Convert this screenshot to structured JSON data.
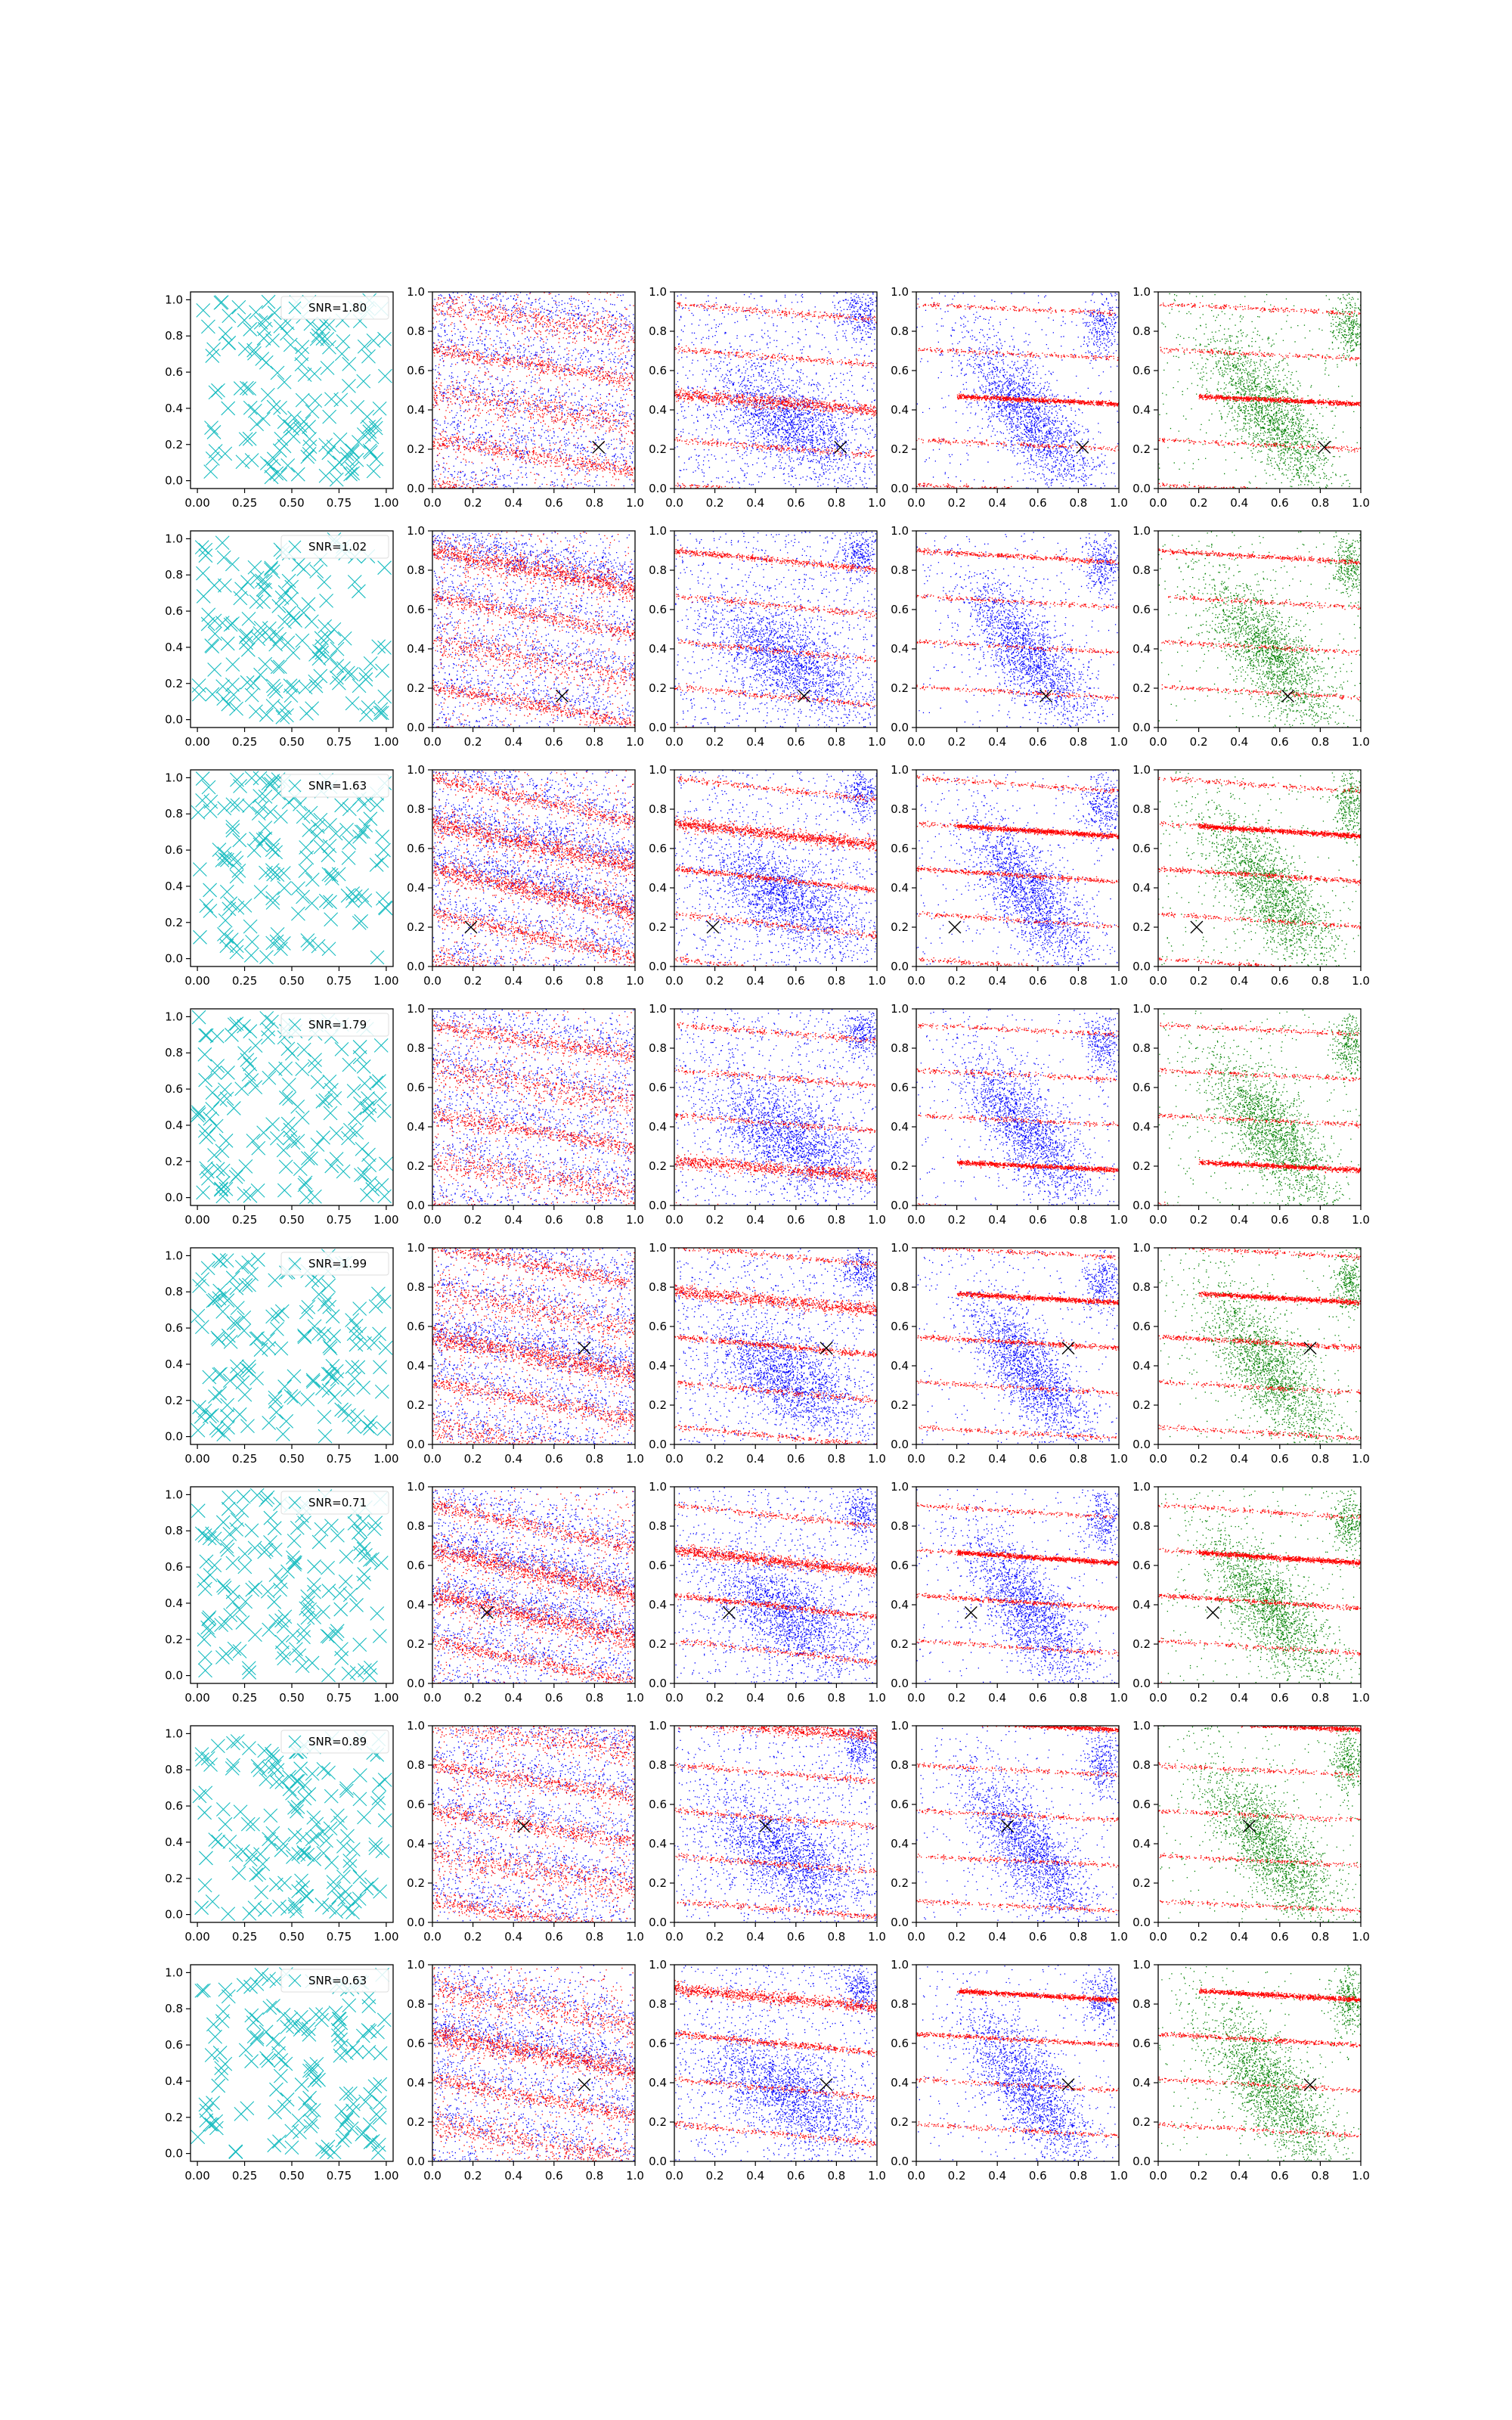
{
  "figure": {
    "rows": 8,
    "columns": 5,
    "colors": {
      "column1": "#17bcc0",
      "blue": "#0000ff",
      "red": "#ff0000",
      "green": "#008000",
      "marker": "#000000"
    }
  },
  "chart_data": [
    {
      "row": 1,
      "col": 1,
      "type": "scatter",
      "series": [
        {
          "marker": "x",
          "color": "#17bcc0"
        }
      ],
      "legend": "SNR=1.80",
      "legend_position": "top-right",
      "xlim": [
        0,
        1
      ],
      "ylim": [
        0,
        1
      ],
      "xticks": [
        "0.00",
        "0.25",
        "0.50",
        "0.75",
        "1.00"
      ],
      "yticks": [
        "0.0",
        "0.2",
        "0.4",
        "0.6",
        "0.8",
        "1.0"
      ]
    },
    {
      "row": 2,
      "col": 1,
      "type": "scatter",
      "series": [
        {
          "marker": "x",
          "color": "#17bcc0"
        }
      ],
      "legend": "SNR=1.02",
      "legend_position": "top-right",
      "xlim": [
        0,
        1
      ],
      "ylim": [
        0,
        1
      ],
      "xticks": [
        "0.00",
        "0.25",
        "0.50",
        "0.75",
        "1.00"
      ],
      "yticks": [
        "0.0",
        "0.2",
        "0.4",
        "0.6",
        "0.8",
        "1.0"
      ]
    },
    {
      "row": 3,
      "col": 1,
      "type": "scatter",
      "series": [
        {
          "marker": "x",
          "color": "#17bcc0"
        }
      ],
      "legend": "SNR=1.63",
      "legend_position": "top-right",
      "xlim": [
        0,
        1
      ],
      "ylim": [
        0,
        1
      ],
      "xticks": [
        "0.00",
        "0.25",
        "0.50",
        "0.75",
        "1.00"
      ],
      "yticks": [
        "0.0",
        "0.2",
        "0.4",
        "0.6",
        "0.8",
        "1.0"
      ]
    },
    {
      "row": 4,
      "col": 1,
      "type": "scatter",
      "series": [
        {
          "marker": "x",
          "color": "#17bcc0"
        }
      ],
      "legend": "SNR=1.79",
      "legend_position": "top-right",
      "xlim": [
        0,
        1
      ],
      "ylim": [
        0,
        1
      ],
      "xticks": [
        "0.00",
        "0.25",
        "0.50",
        "0.75",
        "1.00"
      ],
      "yticks": [
        "0.0",
        "0.2",
        "0.4",
        "0.6",
        "0.8",
        "1.0"
      ]
    },
    {
      "row": 5,
      "col": 1,
      "type": "scatter",
      "series": [
        {
          "marker": "x",
          "color": "#17bcc0"
        }
      ],
      "legend": "SNR=1.99",
      "legend_position": "top-right",
      "xlim": [
        0,
        1
      ],
      "ylim": [
        0,
        1
      ],
      "xticks": [
        "0.00",
        "0.25",
        "0.50",
        "0.75",
        "1.00"
      ],
      "yticks": [
        "0.0",
        "0.2",
        "0.4",
        "0.6",
        "0.8",
        "1.0"
      ]
    },
    {
      "row": 6,
      "col": 1,
      "type": "scatter",
      "series": [
        {
          "marker": "x",
          "color": "#17bcc0"
        }
      ],
      "legend": "SNR=0.71",
      "legend_position": "top-right",
      "xlim": [
        0,
        1
      ],
      "ylim": [
        0,
        1
      ],
      "xticks": [
        "0.00",
        "0.25",
        "0.50",
        "0.75",
        "1.00"
      ],
      "yticks": [
        "0.0",
        "0.2",
        "0.4",
        "0.6",
        "0.8",
        "1.0"
      ]
    },
    {
      "row": 7,
      "col": 1,
      "type": "scatter",
      "series": [
        {
          "marker": "x",
          "color": "#17bcc0"
        }
      ],
      "legend": "SNR=0.89",
      "legend_position": "top-right",
      "xlim": [
        0,
        1
      ],
      "ylim": [
        0,
        1
      ],
      "xticks": [
        "0.00",
        "0.25",
        "0.50",
        "0.75",
        "1.00"
      ],
      "yticks": [
        "0.0",
        "0.2",
        "0.4",
        "0.6",
        "0.8",
        "1.0"
      ]
    },
    {
      "row": 8,
      "col": 1,
      "type": "scatter",
      "series": [
        {
          "marker": "x",
          "color": "#17bcc0"
        }
      ],
      "legend": "SNR=0.63",
      "legend_position": "top-right",
      "xlim": [
        0,
        1
      ],
      "ylim": [
        0,
        1
      ],
      "xticks": [
        "0.00",
        "0.25",
        "0.50",
        "0.75",
        "1.00"
      ],
      "yticks": [
        "0.0",
        "0.2",
        "0.4",
        "0.6",
        "0.8",
        "1.0"
      ]
    },
    {
      "row": 1,
      "col": 2,
      "type": "scatter",
      "marker_point": [
        0.82,
        0.21
      ],
      "xlim": [
        0,
        1
      ],
      "ylim": [
        0,
        1
      ],
      "xticks": [
        "0.0",
        "0.2",
        "0.4",
        "0.6",
        "0.8",
        "1.0"
      ],
      "yticks": [
        "0.0",
        "0.2",
        "0.4",
        "0.6",
        "0.8",
        "1.0"
      ]
    },
    {
      "row": 1,
      "col": 3,
      "type": "scatter",
      "marker_point": [
        0.82,
        0.21
      ],
      "xlim": [
        0,
        1
      ],
      "ylim": [
        0,
        1
      ],
      "xticks": [
        "0.0",
        "0.2",
        "0.4",
        "0.6",
        "0.8",
        "1.0"
      ],
      "yticks": [
        "0.0",
        "0.2",
        "0.4",
        "0.6",
        "0.8",
        "1.0"
      ]
    },
    {
      "row": 1,
      "col": 4,
      "type": "scatter",
      "marker_point": [
        0.82,
        0.21
      ],
      "xlim": [
        0,
        1
      ],
      "ylim": [
        0,
        1
      ],
      "xticks": [
        "0.0",
        "0.2",
        "0.4",
        "0.6",
        "0.8",
        "1.0"
      ],
      "yticks": [
        "0.0",
        "0.2",
        "0.4",
        "0.6",
        "0.8",
        "1.0"
      ]
    },
    {
      "row": 1,
      "col": 5,
      "type": "scatter",
      "marker_point": [
        0.82,
        0.21
      ],
      "xlim": [
        0,
        1
      ],
      "ylim": [
        0,
        1
      ],
      "xticks": [
        "0.0",
        "0.2",
        "0.4",
        "0.6",
        "0.8",
        "1.0"
      ],
      "yticks": [
        "0.0",
        "0.2",
        "0.4",
        "0.6",
        "0.8",
        "1.0"
      ]
    },
    {
      "row": 2,
      "col": 2,
      "type": "scatter",
      "marker_point": [
        0.64,
        0.16
      ],
      "xlim": [
        0,
        1
      ],
      "ylim": [
        0,
        1
      ],
      "xticks": [
        "0.0",
        "0.2",
        "0.4",
        "0.6",
        "0.8",
        "1.0"
      ],
      "yticks": [
        "0.0",
        "0.2",
        "0.4",
        "0.6",
        "0.8",
        "1.0"
      ]
    },
    {
      "row": 2,
      "col": 3,
      "type": "scatter",
      "marker_point": [
        0.64,
        0.16
      ],
      "xlim": [
        0,
        1
      ],
      "ylim": [
        0,
        1
      ],
      "xticks": [
        "0.0",
        "0.2",
        "0.4",
        "0.6",
        "0.8",
        "1.0"
      ],
      "yticks": [
        "0.0",
        "0.2",
        "0.4",
        "0.6",
        "0.8",
        "1.0"
      ]
    },
    {
      "row": 2,
      "col": 4,
      "type": "scatter",
      "marker_point": [
        0.64,
        0.16
      ],
      "xlim": [
        0,
        1
      ],
      "ylim": [
        0,
        1
      ],
      "xticks": [
        "0.0",
        "0.2",
        "0.4",
        "0.6",
        "0.8",
        "1.0"
      ],
      "yticks": [
        "0.0",
        "0.2",
        "0.4",
        "0.6",
        "0.8",
        "1.0"
      ]
    },
    {
      "row": 2,
      "col": 5,
      "type": "scatter",
      "marker_point": [
        0.64,
        0.16
      ],
      "xlim": [
        0,
        1
      ],
      "ylim": [
        0,
        1
      ],
      "xticks": [
        "0.0",
        "0.2",
        "0.4",
        "0.6",
        "0.8",
        "1.0"
      ],
      "yticks": [
        "0.0",
        "0.2",
        "0.4",
        "0.6",
        "0.8",
        "1.0"
      ]
    },
    {
      "row": 3,
      "col": 2,
      "type": "scatter",
      "marker_point": [
        0.19,
        0.2
      ],
      "xlim": [
        0,
        1
      ],
      "ylim": [
        0,
        1
      ],
      "xticks": [
        "0.0",
        "0.2",
        "0.4",
        "0.6",
        "0.8",
        "1.0"
      ],
      "yticks": [
        "0.0",
        "0.2",
        "0.4",
        "0.6",
        "0.8",
        "1.0"
      ]
    },
    {
      "row": 3,
      "col": 3,
      "type": "scatter",
      "marker_point": [
        0.19,
        0.2
      ],
      "xlim": [
        0,
        1
      ],
      "ylim": [
        0,
        1
      ],
      "xticks": [
        "0.0",
        "0.2",
        "0.4",
        "0.6",
        "0.8",
        "1.0"
      ],
      "yticks": [
        "0.0",
        "0.2",
        "0.4",
        "0.6",
        "0.8",
        "1.0"
      ]
    },
    {
      "row": 3,
      "col": 4,
      "type": "scatter",
      "marker_point": [
        0.19,
        0.2
      ],
      "xlim": [
        0,
        1
      ],
      "ylim": [
        0,
        1
      ],
      "xticks": [
        "0.0",
        "0.2",
        "0.4",
        "0.6",
        "0.8",
        "1.0"
      ],
      "yticks": [
        "0.0",
        "0.2",
        "0.4",
        "0.6",
        "0.8",
        "1.0"
      ]
    },
    {
      "row": 3,
      "col": 5,
      "type": "scatter",
      "marker_point": [
        0.19,
        0.2
      ],
      "xlim": [
        0,
        1
      ],
      "ylim": [
        0,
        1
      ],
      "xticks": [
        "0.0",
        "0.2",
        "0.4",
        "0.6",
        "0.8",
        "1.0"
      ],
      "yticks": [
        "0.0",
        "0.2",
        "0.4",
        "0.6",
        "0.8",
        "1.0"
      ]
    },
    {
      "row": 4,
      "col": 2,
      "type": "scatter",
      "marker_point": null,
      "xlim": [
        0,
        1
      ],
      "ylim": [
        0,
        1
      ],
      "xticks": [
        "0.0",
        "0.2",
        "0.4",
        "0.6",
        "0.8",
        "1.0"
      ],
      "yticks": [
        "0.0",
        "0.2",
        "0.4",
        "0.6",
        "0.8",
        "1.0"
      ]
    },
    {
      "row": 4,
      "col": 3,
      "type": "scatter",
      "marker_point": null,
      "xlim": [
        0,
        1
      ],
      "ylim": [
        0,
        1
      ],
      "xticks": [
        "0.0",
        "0.2",
        "0.4",
        "0.6",
        "0.8",
        "1.0"
      ],
      "yticks": [
        "0.0",
        "0.2",
        "0.4",
        "0.6",
        "0.8",
        "1.0"
      ]
    },
    {
      "row": 4,
      "col": 4,
      "type": "scatter",
      "marker_point": null,
      "xlim": [
        0,
        1
      ],
      "ylim": [
        0,
        1
      ],
      "xticks": [
        "0.0",
        "0.2",
        "0.4",
        "0.6",
        "0.8",
        "1.0"
      ],
      "yticks": [
        "0.0",
        "0.2",
        "0.4",
        "0.6",
        "0.8",
        "1.0"
      ]
    },
    {
      "row": 4,
      "col": 5,
      "type": "scatter",
      "marker_point": null,
      "xlim": [
        0,
        1
      ],
      "ylim": [
        0,
        1
      ],
      "xticks": [
        "0.0",
        "0.2",
        "0.4",
        "0.6",
        "0.8",
        "1.0"
      ],
      "yticks": [
        "0.0",
        "0.2",
        "0.4",
        "0.6",
        "0.8",
        "1.0"
      ]
    },
    {
      "row": 5,
      "col": 2,
      "type": "scatter",
      "marker_point": [
        0.75,
        0.49
      ],
      "xlim": [
        0,
        1
      ],
      "ylim": [
        0,
        1
      ],
      "xticks": [
        "0.0",
        "0.2",
        "0.4",
        "0.6",
        "0.8",
        "1.0"
      ],
      "yticks": [
        "0.0",
        "0.2",
        "0.4",
        "0.6",
        "0.8",
        "1.0"
      ]
    },
    {
      "row": 5,
      "col": 3,
      "type": "scatter",
      "marker_point": [
        0.75,
        0.49
      ],
      "xlim": [
        0,
        1
      ],
      "ylim": [
        0,
        1
      ],
      "xticks": [
        "0.0",
        "0.2",
        "0.4",
        "0.6",
        "0.8",
        "1.0"
      ],
      "yticks": [
        "0.0",
        "0.2",
        "0.4",
        "0.6",
        "0.8",
        "1.0"
      ]
    },
    {
      "row": 5,
      "col": 4,
      "type": "scatter",
      "marker_point": [
        0.75,
        0.49
      ],
      "xlim": [
        0,
        1
      ],
      "ylim": [
        0,
        1
      ],
      "xticks": [
        "0.0",
        "0.2",
        "0.4",
        "0.6",
        "0.8",
        "1.0"
      ],
      "yticks": [
        "0.0",
        "0.2",
        "0.4",
        "0.6",
        "0.8",
        "1.0"
      ]
    },
    {
      "row": 5,
      "col": 5,
      "type": "scatter",
      "marker_point": [
        0.75,
        0.49
      ],
      "xlim": [
        0,
        1
      ],
      "ylim": [
        0,
        1
      ],
      "xticks": [
        "0.0",
        "0.2",
        "0.4",
        "0.6",
        "0.8",
        "1.0"
      ],
      "yticks": [
        "0.0",
        "0.2",
        "0.4",
        "0.6",
        "0.8",
        "1.0"
      ]
    },
    {
      "row": 6,
      "col": 2,
      "type": "scatter",
      "marker_point": [
        0.27,
        0.36
      ],
      "xlim": [
        0,
        1
      ],
      "ylim": [
        0,
        1
      ],
      "xticks": [
        "0.0",
        "0.2",
        "0.4",
        "0.6",
        "0.8",
        "1.0"
      ],
      "yticks": [
        "0.0",
        "0.2",
        "0.4",
        "0.6",
        "0.8",
        "1.0"
      ]
    },
    {
      "row": 6,
      "col": 3,
      "type": "scatter",
      "marker_point": [
        0.27,
        0.36
      ],
      "xlim": [
        0,
        1
      ],
      "ylim": [
        0,
        1
      ],
      "xticks": [
        "0.0",
        "0.2",
        "0.4",
        "0.6",
        "0.8",
        "1.0"
      ],
      "yticks": [
        "0.0",
        "0.2",
        "0.4",
        "0.6",
        "0.8",
        "1.0"
      ]
    },
    {
      "row": 6,
      "col": 4,
      "type": "scatter",
      "marker_point": [
        0.27,
        0.36
      ],
      "xlim": [
        0,
        1
      ],
      "ylim": [
        0,
        1
      ],
      "xticks": [
        "0.0",
        "0.2",
        "0.4",
        "0.6",
        "0.8",
        "1.0"
      ],
      "yticks": [
        "0.0",
        "0.2",
        "0.4",
        "0.6",
        "0.8",
        "1.0"
      ]
    },
    {
      "row": 6,
      "col": 5,
      "type": "scatter",
      "marker_point": [
        0.27,
        0.36
      ],
      "xlim": [
        0,
        1
      ],
      "ylim": [
        0,
        1
      ],
      "xticks": [
        "0.0",
        "0.2",
        "0.4",
        "0.6",
        "0.8",
        "1.0"
      ],
      "yticks": [
        "0.0",
        "0.2",
        "0.4",
        "0.6",
        "0.8",
        "1.0"
      ]
    },
    {
      "row": 7,
      "col": 2,
      "type": "scatter",
      "marker_point": [
        0.45,
        0.49
      ],
      "xlim": [
        0,
        1
      ],
      "ylim": [
        0,
        1
      ],
      "xticks": [
        "0.0",
        "0.2",
        "0.4",
        "0.6",
        "0.8",
        "1.0"
      ],
      "yticks": [
        "0.0",
        "0.2",
        "0.4",
        "0.6",
        "0.8",
        "1.0"
      ]
    },
    {
      "row": 7,
      "col": 3,
      "type": "scatter",
      "marker_point": [
        0.45,
        0.49
      ],
      "xlim": [
        0,
        1
      ],
      "ylim": [
        0,
        1
      ],
      "xticks": [
        "0.0",
        "0.2",
        "0.4",
        "0.6",
        "0.8",
        "1.0"
      ],
      "yticks": [
        "0.0",
        "0.2",
        "0.4",
        "0.6",
        "0.8",
        "1.0"
      ]
    },
    {
      "row": 7,
      "col": 4,
      "type": "scatter",
      "marker_point": [
        0.45,
        0.49
      ],
      "xlim": [
        0,
        1
      ],
      "ylim": [
        0,
        1
      ],
      "xticks": [
        "0.0",
        "0.2",
        "0.4",
        "0.6",
        "0.8",
        "1.0"
      ],
      "yticks": [
        "0.0",
        "0.2",
        "0.4",
        "0.6",
        "0.8",
        "1.0"
      ]
    },
    {
      "row": 7,
      "col": 5,
      "type": "scatter",
      "marker_point": [
        0.45,
        0.49
      ],
      "xlim": [
        0,
        1
      ],
      "ylim": [
        0,
        1
      ],
      "xticks": [
        "0.0",
        "0.2",
        "0.4",
        "0.6",
        "0.8",
        "1.0"
      ],
      "yticks": [
        "0.0",
        "0.2",
        "0.4",
        "0.6",
        "0.8",
        "1.0"
      ]
    },
    {
      "row": 8,
      "col": 2,
      "type": "scatter",
      "marker_point": [
        0.75,
        0.39
      ],
      "xlim": [
        0,
        1
      ],
      "ylim": [
        0,
        1
      ],
      "xticks": [
        "0.0",
        "0.2",
        "0.4",
        "0.6",
        "0.8",
        "1.0"
      ],
      "yticks": [
        "0.0",
        "0.2",
        "0.4",
        "0.6",
        "0.8",
        "1.0"
      ]
    },
    {
      "row": 8,
      "col": 3,
      "type": "scatter",
      "marker_point": [
        0.75,
        0.39
      ],
      "xlim": [
        0,
        1
      ],
      "ylim": [
        0,
        1
      ],
      "xticks": [
        "0.0",
        "0.2",
        "0.4",
        "0.6",
        "0.8",
        "1.0"
      ],
      "yticks": [
        "0.0",
        "0.2",
        "0.4",
        "0.6",
        "0.8",
        "1.0"
      ]
    },
    {
      "row": 8,
      "col": 4,
      "type": "scatter",
      "marker_point": [
        0.75,
        0.39
      ],
      "xlim": [
        0,
        1
      ],
      "ylim": [
        0,
        1
      ],
      "xticks": [
        "0.0",
        "0.2",
        "0.4",
        "0.6",
        "0.8",
        "1.0"
      ],
      "yticks": [
        "0.0",
        "0.2",
        "0.4",
        "0.6",
        "0.8",
        "1.0"
      ]
    },
    {
      "row": 8,
      "col": 5,
      "type": "scatter",
      "marker_point": [
        0.75,
        0.39
      ],
      "xlim": [
        0,
        1
      ],
      "ylim": [
        0,
        1
      ],
      "xticks": [
        "0.0",
        "0.2",
        "0.4",
        "0.6",
        "0.8",
        "1.0"
      ],
      "yticks": [
        "0.0",
        "0.2",
        "0.4",
        "0.6",
        "0.8",
        "1.0"
      ]
    }
  ]
}
